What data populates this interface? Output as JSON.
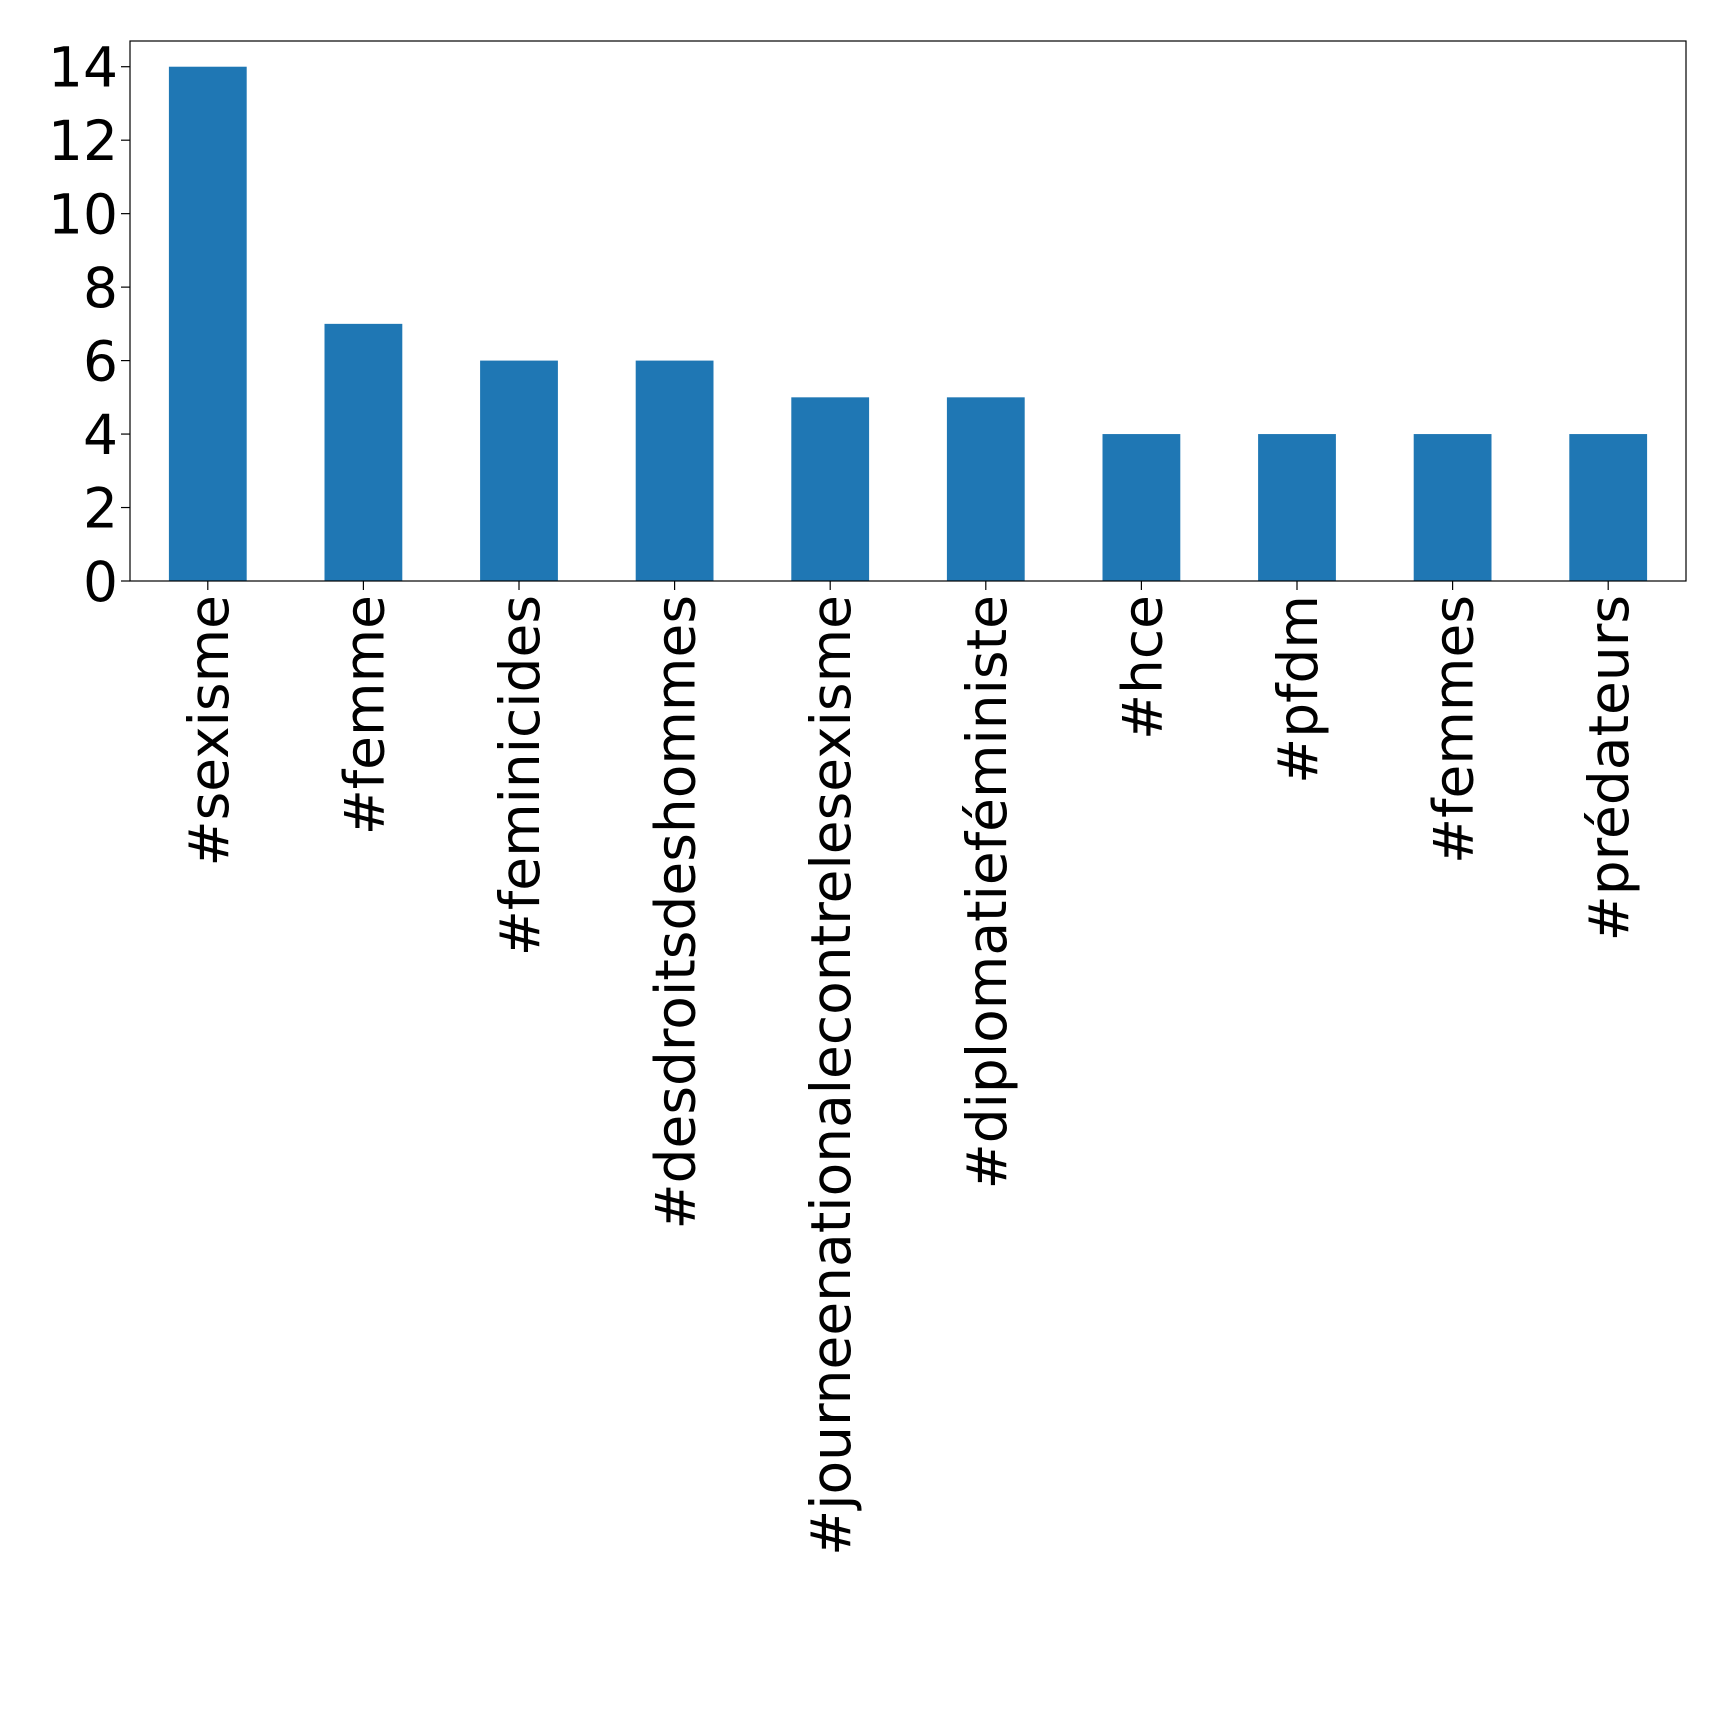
{
  "chart_data": {
    "type": "bar",
    "categories": [
      "#sexisme",
      "#femme",
      "#feminicides",
      "#desdroitsdeshommes",
      "#journeenationalecontrelesexisme",
      "#diplomatieféministe",
      "#hce",
      "#pfdm",
      "#femmes",
      "#prédateurs"
    ],
    "values": [
      14,
      7,
      6,
      6,
      5,
      5,
      4,
      4,
      4,
      4
    ],
    "color": "#1f77b4",
    "ylim": [
      0,
      14.7
    ],
    "yticks": [
      0,
      2,
      4,
      6,
      8,
      10,
      12,
      14
    ],
    "grid": false
  }
}
